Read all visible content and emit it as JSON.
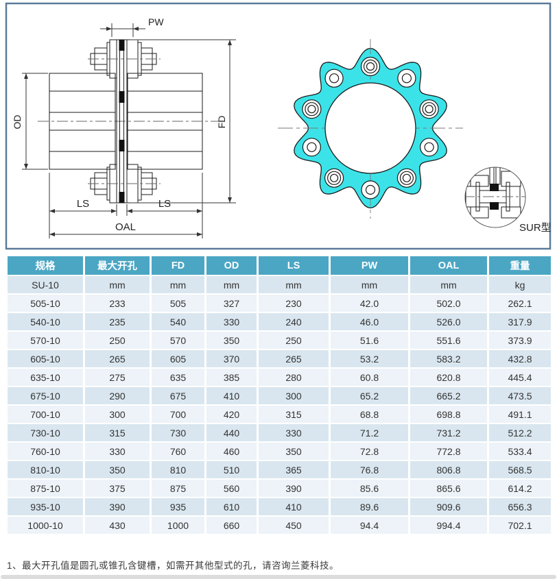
{
  "drawing": {
    "dim_labels": {
      "pw": "PW",
      "od": "OD",
      "fd": "FD",
      "ls_left": "LS",
      "ls_right": "LS",
      "oal": "OAL",
      "detail_label": "SUR型"
    },
    "flange": {
      "lobes": 10,
      "bolt_holes": 10
    },
    "colors": {
      "flange_fill": "#3BE3E8",
      "line": "#1a1a1a",
      "frame_border": "#5B7A99"
    }
  },
  "table": {
    "header": [
      "规格",
      "最大开孔",
      "FD",
      "OD",
      "LS",
      "PW",
      "OAL",
      "重量"
    ],
    "units_row": [
      "SU-10",
      "mm",
      "mm",
      "mm",
      "mm",
      "mm",
      "mm",
      "kg"
    ],
    "rows": [
      [
        "505-10",
        "233",
        "505",
        "327",
        "230",
        "42.0",
        "502.0",
        "262.1"
      ],
      [
        "540-10",
        "235",
        "540",
        "330",
        "240",
        "46.0",
        "526.0",
        "317.9"
      ],
      [
        "570-10",
        "250",
        "570",
        "350",
        "250",
        "51.6",
        "551.6",
        "373.9"
      ],
      [
        "605-10",
        "265",
        "605",
        "370",
        "265",
        "53.2",
        "583.2",
        "432.8"
      ],
      [
        "635-10",
        "275",
        "635",
        "385",
        "280",
        "60.8",
        "620.8",
        "445.4"
      ],
      [
        "675-10",
        "290",
        "675",
        "410",
        "300",
        "65.2",
        "665.2",
        "473.5"
      ],
      [
        "700-10",
        "300",
        "700",
        "420",
        "315",
        "68.8",
        "698.8",
        "491.1"
      ],
      [
        "730-10",
        "315",
        "730",
        "440",
        "330",
        "71.2",
        "731.2",
        "512.2"
      ],
      [
        "760-10",
        "330",
        "760",
        "460",
        "350",
        "72.8",
        "772.8",
        "533.4"
      ],
      [
        "810-10",
        "350",
        "810",
        "510",
        "365",
        "76.8",
        "806.8",
        "568.5"
      ],
      [
        "875-10",
        "375",
        "875",
        "560",
        "390",
        "85.6",
        "865.6",
        "614.2"
      ],
      [
        "935-10",
        "390",
        "935",
        "610",
        "410",
        "89.6",
        "909.6",
        "656.3"
      ],
      [
        "1000-10",
        "430",
        "1000",
        "660",
        "450",
        "94.4",
        "994.4",
        "702.1"
      ]
    ],
    "colors": {
      "header_bg": "#4BA6C4",
      "header_text": "#FFFFFF",
      "row_light": "#EDF3F8",
      "row_dark": "#D9E6EF",
      "cell_text": "#333333"
    }
  },
  "footnote": "1、最大开孔值是圆孔或锥孔含键槽，如需开其他型式的孔，请咨询兰菱科技。"
}
